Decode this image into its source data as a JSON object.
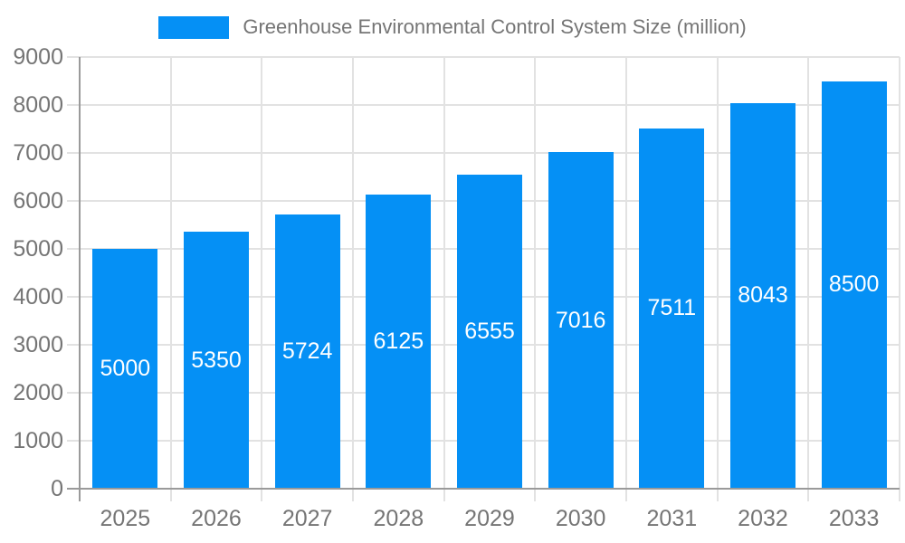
{
  "legend": {
    "series_label": "Greenhouse Environmental Control System Size (million)"
  },
  "chart_data": {
    "type": "bar",
    "title": "Greenhouse Environmental Control System Size (million)",
    "categories": [
      "2025",
      "2026",
      "2027",
      "2028",
      "2029",
      "2030",
      "2031",
      "2032",
      "2033"
    ],
    "values": [
      5000,
      5350,
      5724,
      6125,
      6555,
      7016,
      7511,
      8043,
      8500
    ],
    "xlabel": "",
    "ylabel": "",
    "ylim": [
      0,
      9000
    ],
    "y_ticks": [
      0,
      1000,
      2000,
      3000,
      4000,
      5000,
      6000,
      7000,
      8000,
      9000
    ],
    "grid": true,
    "legend_position": "top",
    "bar_color": "#0590f5",
    "bar_label_color": "#ffffff",
    "axis_text_color": "#757575",
    "gridline_color": "#e2e2e2",
    "axis_line_color": "#9a9a9a"
  }
}
